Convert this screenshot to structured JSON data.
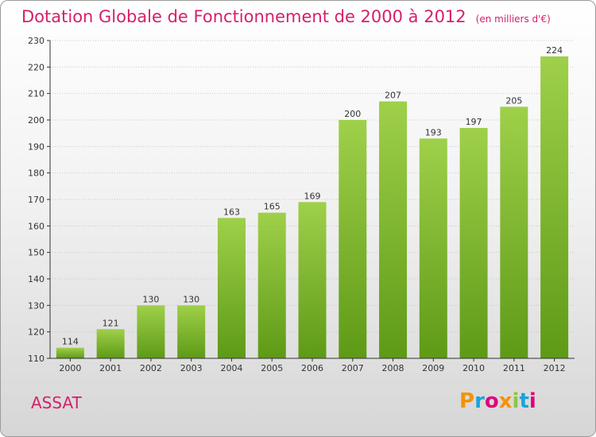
{
  "header": {
    "title": "Dotation Globale de Fonctionnement de 2000 à 2012",
    "unit_note": "(en milliers d'€)"
  },
  "footer": {
    "commune": "ASSAT",
    "logo_text": "Proxiti",
    "logo_colors": [
      "#f29400",
      "#1aa3d9",
      "#e2007a",
      "#f29400",
      "#8dc63f",
      "#1aa3d9",
      "#e2007a"
    ]
  },
  "colors": {
    "bar_top": "#9fd04a",
    "bar_bottom": "#5e9a16",
    "grid": "#c8c8c8",
    "axis": "#333333"
  },
  "chart_data": {
    "type": "bar",
    "title": "Dotation Globale de Fonctionnement de 2000 à 2012",
    "categories": [
      "2000",
      "2001",
      "2002",
      "2003",
      "2004",
      "2005",
      "2006",
      "2007",
      "2008",
      "2009",
      "2010",
      "2011",
      "2012"
    ],
    "values": [
      114,
      121,
      130,
      130,
      163,
      165,
      169,
      200,
      207,
      193,
      197,
      205,
      224
    ],
    "ylim": [
      110,
      230
    ],
    "yticks": [
      110,
      120,
      130,
      140,
      150,
      160,
      170,
      180,
      190,
      200,
      210,
      220,
      230
    ],
    "grid": true,
    "data_labels": true
  }
}
